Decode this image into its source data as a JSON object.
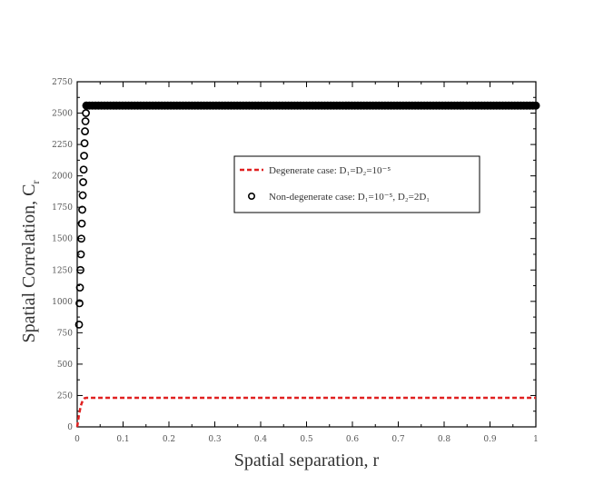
{
  "chart_data": {
    "type": "scatter",
    "xlabel": "Spatial separation, r",
    "ylabel": "Spatial Correlation, C",
    "ylabel_sub": "r",
    "xlim": [
      0,
      1
    ],
    "ylim": [
      0,
      2750
    ],
    "x_ticks": [
      0,
      0.1,
      0.2,
      0.3,
      0.4,
      0.5,
      0.6,
      0.7,
      0.8,
      0.9,
      1
    ],
    "x_tick_labels": [
      "0",
      "0.1",
      "0.2",
      "0.3",
      "0.4",
      "0.5",
      "0.6",
      "0.7",
      "0.8",
      "0.9",
      "1"
    ],
    "y_ticks": [
      0,
      250,
      500,
      750,
      1000,
      1250,
      1500,
      1750,
      2000,
      2250,
      2500,
      2750
    ],
    "y_tick_labels": [
      "0",
      "250",
      "500",
      "750",
      "1000",
      "1250",
      "1500",
      "1750",
      "2000",
      "2250",
      "2500",
      "2750"
    ],
    "legend_position": "upper-middle-right",
    "series": [
      {
        "name": "Degenerate case: D₁=D₂=10⁻⁵",
        "style": "dashed-line",
        "color": "#e02020",
        "x": [
          0,
          0.004,
          0.008,
          0.012,
          0.016,
          0.02,
          0.1,
          0.3,
          0.5,
          0.7,
          0.9,
          1
        ],
        "y": [
          0,
          100,
          170,
          210,
          228,
          232,
          232,
          232,
          232,
          232,
          232,
          232
        ]
      },
      {
        "name": "Non-degenerate case: D₁=10⁻⁵, D₂=2D₁",
        "style": "open-circles",
        "color": "#000000",
        "x": [
          0.004,
          0.005,
          0.006,
          0.007,
          0.008,
          0.009,
          0.01,
          0.011,
          0.012,
          0.013,
          0.014,
          0.015,
          0.016,
          0.017,
          0.018,
          0.019,
          0.02
        ],
        "y": [
          815,
          985,
          1110,
          1250,
          1375,
          1500,
          1620,
          1730,
          1845,
          1950,
          2050,
          2160,
          2260,
          2355,
          2435,
          2500,
          2560
        ]
      },
      {
        "name": "",
        "style": "filled-circles",
        "color": "#000000",
        "x_start": 0.02,
        "x_end": 1,
        "count": 150,
        "y": 2560
      }
    ]
  }
}
